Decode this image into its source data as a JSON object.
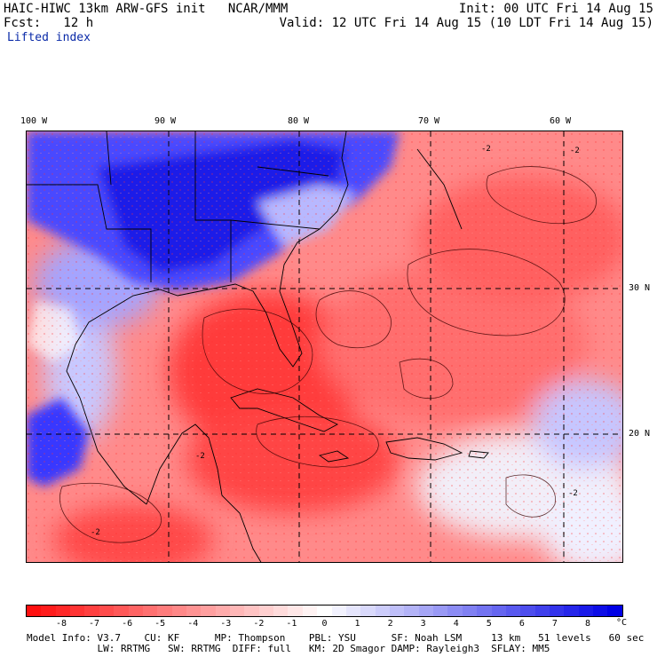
{
  "header": {
    "title_left": "HAIC-HIWC 13km ARW-GFS init   NCAR/MMM",
    "fcst": "Fcst:   12 h",
    "field": "Lifted index",
    "init": "Init: 00 UTC Fri 14 Aug 15",
    "valid": "Valid: 12 UTC Fri 14 Aug 15 (10 LDT Fri 14 Aug 15)"
  },
  "map": {
    "lon_labels": [
      "100 W",
      "90 W",
      "80 W",
      "70 W",
      "60 W"
    ],
    "lat_labels": [
      "30 N",
      "20 N"
    ],
    "contour_labels": [
      "-2",
      "-2",
      "-2",
      "-2",
      "-2"
    ]
  },
  "colorbar": {
    "ticks": [
      "-8",
      "-7",
      "-6",
      "-5",
      "-4",
      "-3",
      "-2",
      "-1",
      "0",
      "1",
      "2",
      "3",
      "4",
      "5",
      "6",
      "7",
      "8"
    ],
    "unit": "°C",
    "colors": [
      "#ff1010",
      "#ff2828",
      "#ff3c3c",
      "#ff5050",
      "#ff6464",
      "#ff7878",
      "#ff8c8c",
      "#ffa0a0",
      "#ffb4b4",
      "#ffc8c8",
      "#ffdcdc",
      "#fff0f0",
      "#ffffff",
      "#f0f0ff",
      "#dcdcff",
      "#c8c8ff",
      "#b4b4ff",
      "#a0a0ff",
      "#8c8cff",
      "#7878ff",
      "#6464ff",
      "#5050ff",
      "#3c3cff",
      "#2828ff",
      "#1414ff",
      "#0000ff",
      "#0000e6",
      "#0000cc",
      "#0000b4",
      "#00009c",
      "#000088",
      "#000074",
      "#00005c",
      "#000048",
      "#000032",
      "#000020",
      "#000010",
      "#000000",
      "#000000",
      "#000000",
      "#000000"
    ]
  },
  "model_info": {
    "line1": "Model Info: V3.7    CU: KF      MP: Thompson    PBL: YSU      SF: Noah LSM     13 km   51 levels   60 sec",
    "line2": "            LW: RRTMG   SW: RRTMG  DIFF: full   KM: 2D Smagor DAMP: Rayleigh3  SFLAY: MM5"
  }
}
